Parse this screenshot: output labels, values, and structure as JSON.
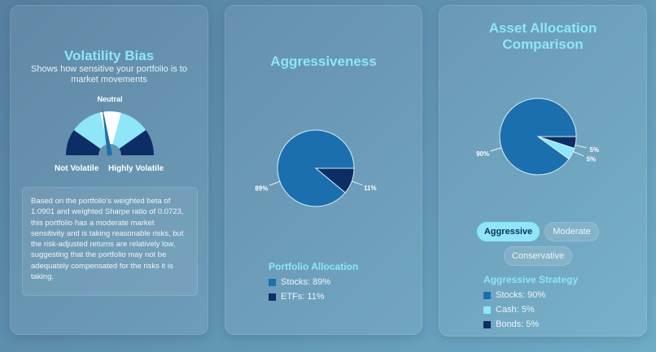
{
  "volatility": {
    "title": "Volatility Bias",
    "subtitle": "Shows how sensitive your portfolio is to market movements",
    "gauge_top_label": "Neutral",
    "gauge_left_label": "Not Volatile",
    "gauge_right_label": "Highly Volatile",
    "description": "Based on the portfolio's weighted beta of 1.0901 and weighted Sharpe ratio of 0.0723, this portfolio has a moderate market sensitivity and is taking reasonable risks, but the risk-adjusted returns are relatively low, suggesting that the portfolio may not be adequately compensated for the risks it is taking."
  },
  "aggressiveness": {
    "title": "Aggressiveness",
    "legend_title": "Portfolio Allocation",
    "legend": [
      {
        "label": "Stocks: 89%",
        "color": "#1b6fae"
      },
      {
        "label": "ETFs: 11%",
        "color": "#0c2d66"
      }
    ]
  },
  "allocation": {
    "title": "Asset Allocation Comparison",
    "buttons": [
      {
        "label": "Aggressive",
        "active": true
      },
      {
        "label": "Moderate",
        "active": false
      },
      {
        "label": "Conservative",
        "active": false
      }
    ],
    "legend_title": "Aggressive Strategy",
    "legend": [
      {
        "label": "Stocks: 90%",
        "color": "#1b6fae"
      },
      {
        "label": "Cash: 5%",
        "color": "#8ee6f8"
      },
      {
        "label": "Bonds: 5%",
        "color": "#0c2d66"
      }
    ]
  },
  "chart_data": [
    {
      "type": "pie",
      "slices": [
        {
          "name": "Stocks",
          "value": 89,
          "label": "89%",
          "color": "#1b6fae"
        },
        {
          "name": "ETFs",
          "value": 11,
          "label": "11%",
          "color": "#0c2d66"
        }
      ]
    },
    {
      "type": "pie",
      "slices": [
        {
          "name": "Stocks",
          "value": 90,
          "label": "90%",
          "color": "#1b6fae"
        },
        {
          "name": "Cash",
          "value": 5,
          "label": "5%",
          "color": "#8ee6f8"
        },
        {
          "name": "Bonds",
          "value": 5,
          "label": "5%",
          "color": "#0c2d66"
        }
      ]
    }
  ]
}
